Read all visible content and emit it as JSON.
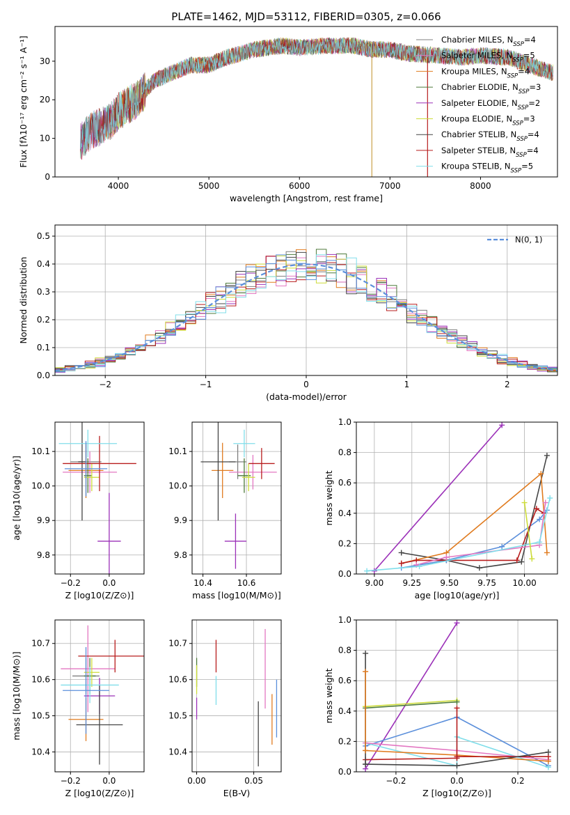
{
  "figure": {
    "title": "PLATE=1462, MJD=53112, FIBERID=0305, z=0.066"
  },
  "models": [
    {
      "name": "Chabrier MILES",
      "nssp": "4",
      "color": "#7f7f7f"
    },
    {
      "name": "Salpeter MILES",
      "nssp": "5",
      "color": "#e377c2"
    },
    {
      "name": "Kroupa MILES",
      "nssp": "4",
      "color": "#e07b1f"
    },
    {
      "name": "Chabrier ELODIE",
      "nssp": "3",
      "color": "#4d7a3a"
    },
    {
      "name": "Salpeter ELODIE",
      "nssp": "2",
      "color": "#9b30b8"
    },
    {
      "name": "Kroupa ELODIE",
      "nssp": "3",
      "color": "#cddc39"
    },
    {
      "name": "Chabrier STELIB",
      "nssp": "4",
      "color": "#444444"
    },
    {
      "name": "Salpeter STELIB",
      "nssp": "4",
      "color": "#b71c1c"
    },
    {
      "name": "Kroupa STELIB",
      "nssp": "5",
      "color": "#80deea"
    }
  ],
  "chart_data": [
    {
      "type": "line",
      "panel": "spectrum",
      "title": "PLATE=1462, MJD=53112, FIBERID=0305, z=0.066",
      "xlabel": "wavelength [Angstrom, rest frame]",
      "ylabel": "Flux [fλ10⁻¹⁷ erg cm⁻² s⁻¹ A⁻¹]",
      "xlim": [
        3300,
        8850
      ],
      "ylim": [
        0,
        39
      ],
      "xticks": [
        4000,
        5000,
        6000,
        7000,
        8000
      ],
      "yticks": [
        0,
        10,
        20,
        30
      ],
      "legend": "right",
      "continuum": [
        [
          3580,
          9
        ],
        [
          3700,
          12
        ],
        [
          3900,
          14
        ],
        [
          4000,
          17
        ],
        [
          4200,
          20
        ],
        [
          4400,
          25
        ],
        [
          4600,
          27
        ],
        [
          4800,
          29
        ],
        [
          5000,
          29
        ],
        [
          5200,
          31
        ],
        [
          5500,
          33
        ],
        [
          5800,
          34
        ],
        [
          6000,
          33.5
        ],
        [
          6300,
          34
        ],
        [
          6600,
          34
        ],
        [
          6800,
          33
        ],
        [
          7000,
          33
        ],
        [
          7200,
          32
        ],
        [
          7500,
          31.5
        ],
        [
          7800,
          31
        ],
        [
          8000,
          31.5
        ],
        [
          8300,
          31
        ],
        [
          8600,
          28.5
        ],
        [
          8800,
          27
        ]
      ],
      "series": [
        {
          "name": "Chabrier MILES, N_SSP=4",
          "color": "#7f7f7f"
        },
        {
          "name": "Salpeter MILES, N_SSP=5",
          "color": "#e377c2"
        },
        {
          "name": "Kroupa MILES, N_SSP=4",
          "color": "#e07b1f"
        },
        {
          "name": "Chabrier ELODIE, N_SSP=3",
          "color": "#4d7a3a"
        },
        {
          "name": "Salpeter ELODIE, N_SSP=2",
          "color": "#9b30b8"
        },
        {
          "name": "Kroupa ELODIE, N_SSP=3",
          "color": "#cddc39"
        },
        {
          "name": "Chabrier STELIB, N_SSP=4",
          "color": "#444444"
        },
        {
          "name": "Salpeter STELIB, N_SSP=4",
          "color": "#b71c1c"
        },
        {
          "name": "Kroupa STELIB, N_SSP=5",
          "color": "#80deea"
        }
      ]
    },
    {
      "type": "histogram",
      "panel": "residuals",
      "xlabel": "(data-model)/error",
      "ylabel": "Normed distribution",
      "xlim": [
        -2.5,
        2.5
      ],
      "ylim": [
        0,
        0.54
      ],
      "xticks": [
        -2,
        -1,
        0,
        1,
        2
      ],
      "yticks": [
        0.0,
        0.1,
        0.2,
        0.3,
        0.4,
        0.5
      ],
      "bin_width": 0.1,
      "bin_start": -2.5,
      "gaussian_label": "N(0, 1)",
      "gaussian_color": "#5b8fdb",
      "grid": true,
      "legend": "top-right"
    },
    {
      "type": "scatter",
      "panel": "age-vs-Z",
      "xlabel": "Z [log10(Z/Z⊙)]",
      "ylabel": "age [log10(age/yr)]",
      "xlim": [
        -0.28,
        0.18
      ],
      "ylim": [
        9.745,
        10.185
      ],
      "xticks": [
        -0.2,
        0.0
      ],
      "yticks": [
        9.8,
        9.9,
        10.0,
        10.1
      ],
      "points": [
        {
          "color": "#7f7f7f",
          "x": -0.12,
          "xerr": 0.08,
          "y": 10.07,
          "yerr": 0.05
        },
        {
          "color": "#e377c2",
          "x": -0.1,
          "xerr": 0.14,
          "y": 10.04,
          "yerr": 0.06
        },
        {
          "color": "#e07b1f",
          "x": -0.12,
          "xerr": 0.09,
          "y": 10.045,
          "yerr": 0.08
        },
        {
          "color": "#4d7a3a",
          "x": -0.11,
          "xerr": 0.02,
          "y": 10.03,
          "yerr": 0.05
        },
        {
          "color": "#9b30b8",
          "x": 0.0,
          "xerr": 0.06,
          "y": 9.84,
          "yerr": 0.14
        },
        {
          "color": "#cddc39",
          "x": -0.09,
          "xerr": 0.04,
          "y": 10.025,
          "yerr": 0.04
        },
        {
          "color": "#444444",
          "x": -0.14,
          "xerr": 0.02,
          "y": 10.07,
          "yerr": 0.17
        },
        {
          "color": "#b71c1c",
          "x": -0.05,
          "xerr": 0.19,
          "y": 10.065,
          "yerr": 0.08
        },
        {
          "color": "#80deea",
          "x": -0.11,
          "xerr": 0.15,
          "y": 10.123,
          "yerr": 0.04
        },
        {
          "color": "#5b8fdb",
          "x": -0.12,
          "xerr": 0.11,
          "y": 10.05,
          "yerr": 0.08
        }
      ]
    },
    {
      "type": "scatter",
      "panel": "age-vs-mass",
      "xlabel": "mass [log10(M/M⊙)]",
      "xlim": [
        10.35,
        10.76
      ],
      "ylim": [
        9.745,
        10.185
      ],
      "xticks": [
        10.4,
        10.6
      ],
      "yticks": [
        9.8,
        9.9,
        10.0,
        10.1
      ],
      "points": [
        {
          "color": "#7f7f7f",
          "x": 10.56,
          "xerr": 0.04,
          "y": 10.07,
          "yerr": 0.05
        },
        {
          "color": "#e377c2",
          "x": 10.63,
          "xerr": 0.11,
          "y": 10.04,
          "yerr": 0.05
        },
        {
          "color": "#e07b1f",
          "x": 10.49,
          "xerr": 0.05,
          "y": 10.045,
          "yerr": 0.08
        },
        {
          "color": "#4d7a3a",
          "x": 10.59,
          "xerr": 0.03,
          "y": 10.03,
          "yerr": 0.05
        },
        {
          "color": "#9b30b8",
          "x": 10.55,
          "xerr": 0.05,
          "y": 9.84,
          "yerr": 0.08
        },
        {
          "color": "#cddc39",
          "x": 10.61,
          "xerr": 0.03,
          "y": 10.025,
          "yerr": 0.04
        },
        {
          "color": "#444444",
          "x": 10.47,
          "xerr": 0.08,
          "y": 10.07,
          "yerr": 0.17
        },
        {
          "color": "#b71c1c",
          "x": 10.67,
          "xerr": 0.06,
          "y": 10.065,
          "yerr": 0.045
        },
        {
          "color": "#80deea",
          "x": 10.59,
          "xerr": 0.05,
          "y": 10.123,
          "yerr": 0.04
        }
      ]
    },
    {
      "type": "line",
      "panel": "mass-weight-vs-age",
      "xlabel": "age [log10(age/yr)]",
      "ylabel": "mass weight",
      "xlim": [
        8.88,
        10.22
      ],
      "ylim": [
        0,
        1.0
      ],
      "xticks": [
        9.0,
        9.25,
        9.5,
        9.75,
        10.0
      ],
      "yticks": [
        0.0,
        0.2,
        0.4,
        0.6,
        0.8,
        1.0
      ],
      "series": [
        {
          "color": "#9b30b8",
          "points": [
            [
              9.0,
              0.02
            ],
            [
              9.85,
              0.98
            ]
          ]
        },
        {
          "color": "#444444",
          "points": [
            [
              9.18,
              0.14
            ],
            [
              9.48,
              0.09
            ],
            [
              9.7,
              0.04
            ],
            [
              9.98,
              0.08
            ],
            [
              10.15,
              0.78
            ]
          ]
        },
        {
          "color": "#e07b1f",
          "points": [
            [
              9.18,
              0.07
            ],
            [
              9.48,
              0.14
            ],
            [
              10.11,
              0.66
            ],
            [
              10.15,
              0.14
            ]
          ]
        },
        {
          "color": "#5b8fdb",
          "points": [
            [
              9.18,
              0.04
            ],
            [
              9.48,
              0.09
            ],
            [
              9.85,
              0.18
            ],
            [
              10.1,
              0.36
            ],
            [
              10.15,
              0.42
            ]
          ]
        },
        {
          "color": "#b71c1c",
          "points": [
            [
              9.18,
              0.07
            ],
            [
              9.28,
              0.09
            ],
            [
              9.95,
              0.09
            ],
            [
              10.08,
              0.43
            ],
            [
              10.13,
              0.4
            ]
          ]
        },
        {
          "color": "#e377c2",
          "points": [
            [
              9.28,
              0.06
            ],
            [
              9.48,
              0.11
            ],
            [
              10.1,
              0.19
            ],
            [
              10.14,
              0.47
            ]
          ]
        },
        {
          "color": "#80deea",
          "points": [
            [
              8.95,
              0.02
            ],
            [
              9.3,
              0.05
            ],
            [
              10.1,
              0.21
            ],
            [
              10.17,
              0.5
            ]
          ]
        },
        {
          "color": "#cddc39",
          "points": [
            [
              10.0,
              0.47
            ],
            [
              10.05,
              0.1
            ]
          ]
        }
      ]
    },
    {
      "type": "scatter",
      "panel": "mass-vs-Z",
      "xlabel": "Z [log10(Z/Z⊙)]",
      "ylabel": "mass [log10(M/M⊙)]",
      "xlim": [
        -0.28,
        0.18
      ],
      "ylim": [
        10.345,
        10.765
      ],
      "xticks": [
        -0.2,
        0.0
      ],
      "yticks": [
        10.4,
        10.5,
        10.6,
        10.7
      ],
      "points": [
        {
          "color": "#7f7f7f",
          "x": -0.12,
          "xerr": 0.07,
          "y": 10.61,
          "yerr": 0.05
        },
        {
          "color": "#e377c2",
          "x": -0.11,
          "xerr": 0.14,
          "y": 10.63,
          "yerr": 0.12
        },
        {
          "color": "#e07b1f",
          "x": -0.12,
          "xerr": 0.09,
          "y": 10.49,
          "yerr": 0.06
        },
        {
          "color": "#4d7a3a",
          "x": -0.1,
          "xerr": 0.03,
          "y": 10.61,
          "yerr": 0.05
        },
        {
          "color": "#9b30b8",
          "x": -0.05,
          "xerr": 0.08,
          "y": 10.555,
          "yerr": 0.05
        },
        {
          "color": "#cddc39",
          "x": -0.09,
          "xerr": 0.04,
          "y": 10.62,
          "yerr": 0.04
        },
        {
          "color": "#444444",
          "x": -0.05,
          "xerr": 0.12,
          "y": 10.475,
          "yerr": 0.11
        },
        {
          "color": "#b71c1c",
          "x": 0.03,
          "xerr": 0.19,
          "y": 10.665,
          "yerr": 0.045
        },
        {
          "color": "#80deea",
          "x": -0.1,
          "xerr": 0.15,
          "y": 10.585,
          "yerr": 0.05
        },
        {
          "color": "#5b8fdb",
          "x": -0.12,
          "xerr": 0.12,
          "y": 10.57,
          "yerr": 0.12
        }
      ]
    },
    {
      "type": "scatter",
      "panel": "mass-vs-EBV",
      "xlabel": "E(B-V)",
      "xlim": [
        -0.004,
        0.074
      ],
      "ylim": [
        10.345,
        10.765
      ],
      "xticks": [
        0.0,
        0.05
      ],
      "yticks": [
        10.4,
        10.5,
        10.6,
        10.7
      ],
      "points": [
        {
          "color": "#4d7a3a",
          "x": 0.0,
          "y": 10.62,
          "yerr": 0.04
        },
        {
          "color": "#9b30b8",
          "x": 0.0,
          "y": 10.52,
          "yerr": 0.03
        },
        {
          "color": "#cddc39",
          "x": 0.0,
          "y": 10.6,
          "yerr": 0.04
        },
        {
          "color": "#b71c1c",
          "x": 0.017,
          "y": 10.665,
          "yerr": 0.045
        },
        {
          "color": "#80deea",
          "x": 0.017,
          "y": 10.57,
          "yerr": 0.04
        },
        {
          "color": "#444444",
          "x": 0.054,
          "y": 10.45,
          "yerr": 0.09
        },
        {
          "color": "#e377c2",
          "x": 0.06,
          "y": 10.63,
          "yerr": 0.11
        },
        {
          "color": "#e07b1f",
          "x": 0.066,
          "y": 10.49,
          "yerr": 0.07
        },
        {
          "color": "#5b8fdb",
          "x": 0.07,
          "y": 10.52,
          "yerr": 0.08
        }
      ]
    },
    {
      "type": "line",
      "panel": "mass-weight-vs-Z",
      "xlabel": "Z [log10(Z/Z⊙)]",
      "ylabel": "mass weight",
      "xlim": [
        -0.33,
        0.33
      ],
      "ylim": [
        0,
        1.0
      ],
      "xticks": [
        -0.2,
        0.0,
        0.2
      ],
      "yticks": [
        0.0,
        0.2,
        0.4,
        0.6,
        0.8,
        1.0
      ],
      "series": [
        {
          "color": "#9b30b8",
          "points": [
            [
              -0.3,
              0.02
            ],
            [
              0.0,
              0.98
            ]
          ]
        },
        {
          "color": "#cddc39",
          "points": [
            [
              -0.3,
              0.43
            ],
            [
              0.0,
              0.47
            ]
          ]
        },
        {
          "color": "#4d7a3a",
          "points": [
            [
              -0.3,
              0.42
            ],
            [
              0.0,
              0.46
            ]
          ]
        },
        {
          "color": "#5b8fdb",
          "points": [
            [
              -0.3,
              0.17
            ],
            [
              0.0,
              0.36
            ],
            [
              0.3,
              0.04
            ]
          ]
        },
        {
          "color": "#80deea",
          "points": [
            [
              -0.3,
              0.19
            ],
            [
              0.0,
              0.04
            ],
            [
              0.0,
              0.23
            ],
            [
              0.3,
              0.03
            ]
          ]
        },
        {
          "color": "#e377c2",
          "points": [
            [
              -0.3,
              0.19
            ],
            [
              0.0,
              0.14
            ],
            [
              0.3,
              0.08
            ]
          ]
        },
        {
          "color": "#e07b1f",
          "points": [
            [
              -0.3,
              0.14
            ],
            [
              0.0,
              0.11
            ],
            [
              0.3,
              0.07
            ]
          ]
        },
        {
          "color": "#b71c1c",
          "points": [
            [
              -0.3,
              0.08
            ],
            [
              0.0,
              0.09
            ],
            [
              0.0,
              0.42
            ],
            [
              0.0,
              0.1
            ],
            [
              0.3,
              0.1
            ]
          ]
        },
        {
          "color": "#444444",
          "points": [
            [
              -0.3,
              0.05
            ],
            [
              0.0,
              0.04
            ],
            [
              0.3,
              0.13
            ]
          ]
        },
        {
          "color": "#444444",
          "points": [
            [
              -0.3,
              0.78
            ],
            [
              -0.3,
              0.05
            ]
          ]
        },
        {
          "color": "#e07b1f",
          "points": [
            [
              -0.3,
              0.66
            ],
            [
              -0.3,
              0.14
            ]
          ]
        }
      ]
    }
  ]
}
